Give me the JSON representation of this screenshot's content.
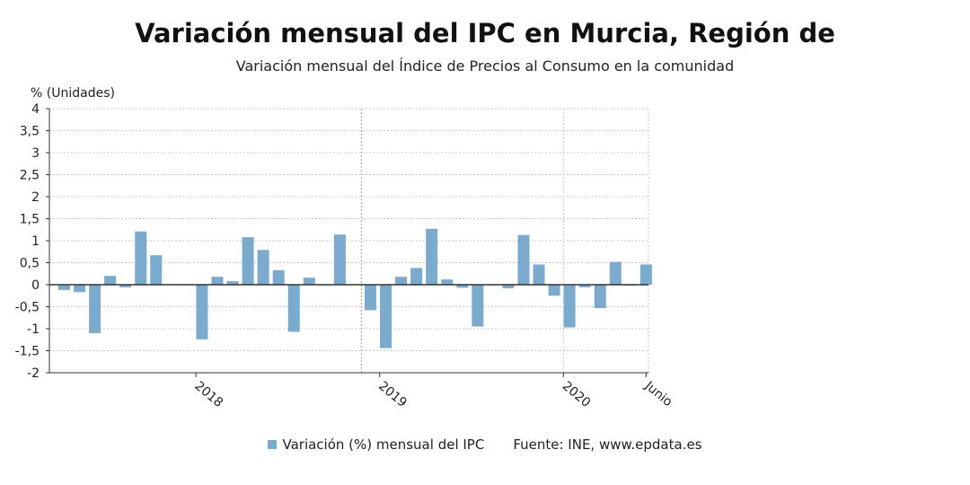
{
  "chart_data": {
    "type": "bar",
    "title": "Variación mensual del IPC en Murcia, Región de",
    "subtitle": "Variación mensual del Índice de Precios al Consumo en la comunidad",
    "ylabel": "% (Unidades)",
    "ylim": [
      -2,
      4
    ],
    "yticks": [
      "-2",
      "-1,5",
      "-1",
      "-0,5",
      "0",
      "0,5",
      "1",
      "1,5",
      "2",
      "2,5",
      "3",
      "3,5",
      "4"
    ],
    "grid": true,
    "xtick_labels": [
      "2018",
      "2019",
      "2020",
      "Junio"
    ],
    "legend_position": "bottom",
    "bar_color": "#7aaacd",
    "series": [
      {
        "name": "Variación (%) mensual del IPC",
        "values": [
          -0.12,
          -0.17,
          -1.1,
          0.2,
          -0.06,
          1.21,
          0.67,
          0.01,
          -0.01,
          -1.24,
          0.18,
          0.08,
          1.08,
          0.79,
          0.33,
          -1.07,
          0.16,
          0.0,
          1.14,
          0.01,
          -0.58,
          -1.44,
          0.18,
          0.38,
          1.27,
          0.12,
          -0.07,
          -0.95,
          0.0,
          -0.08,
          1.13,
          0.46,
          -0.25,
          -0.97,
          -0.06,
          -0.53,
          0.52,
          -0.02,
          0.46
        ]
      }
    ],
    "source": "Fuente: INE, www.epdata.es"
  }
}
